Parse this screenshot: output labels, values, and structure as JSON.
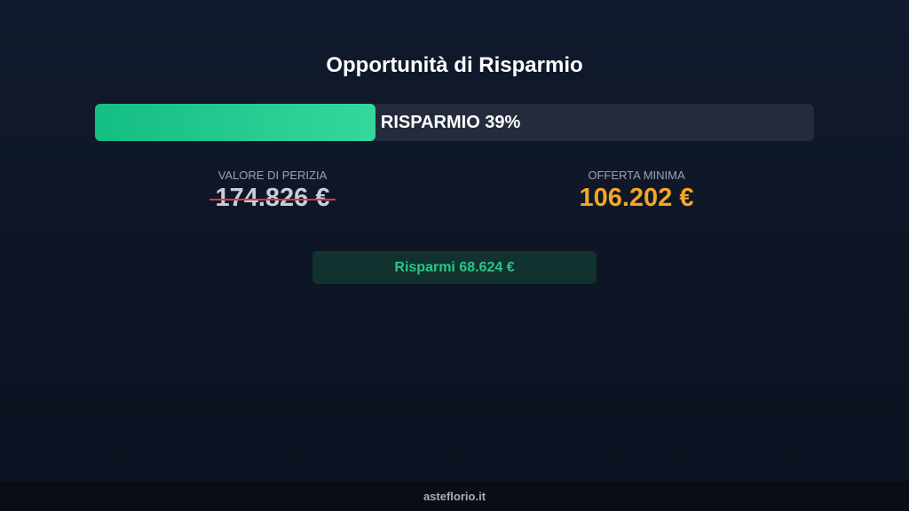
{
  "title": "Opportunità di Risparmio",
  "savings_bar": {
    "label": "RISPARMIO 39%",
    "percent": 39,
    "fill_color": "#1fc98c"
  },
  "appraisal": {
    "label": "VALORE DI PERIZIA",
    "value": "174.826 €",
    "strikethrough": true
  },
  "minimum_offer": {
    "label": "OFFERTA MINIMA",
    "value": "106.202 €",
    "color": "#f5a623"
  },
  "savings_box": {
    "text": "Risparmi 68.624 €"
  },
  "footer": {
    "text": "asteflorio.it"
  }
}
